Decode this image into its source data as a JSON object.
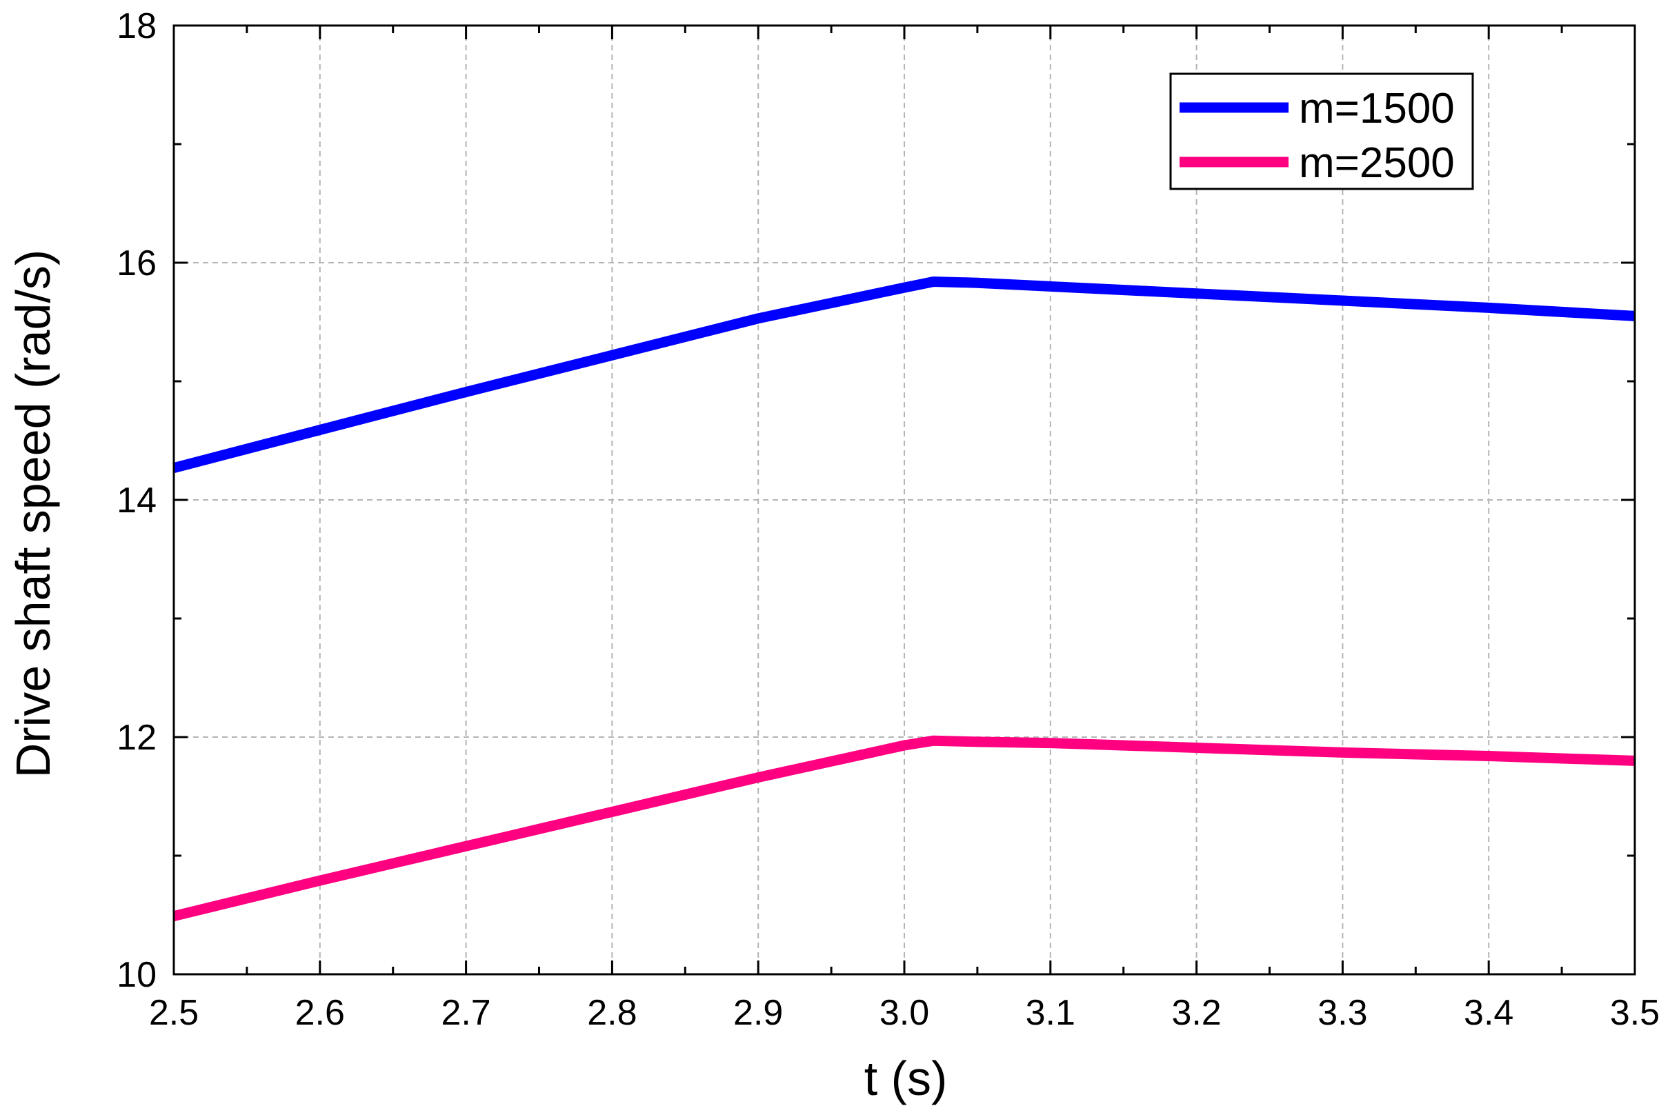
{
  "chart_data": {
    "type": "line",
    "title": "",
    "xlabel": "t (s)",
    "ylabel": "Drive shaft speed (rad/s)",
    "xlim": [
      2.5,
      3.5
    ],
    "ylim": [
      10,
      18
    ],
    "x_ticks": [
      "2.5",
      "2.6",
      "2.7",
      "2.8",
      "2.9",
      "3.0",
      "3.1",
      "3.2",
      "3.3",
      "3.4",
      "3.5"
    ],
    "y_ticks": [
      "10",
      "12",
      "14",
      "16",
      "18"
    ],
    "grid": true,
    "legend_position": "top-right",
    "series": [
      {
        "name": "m=1500",
        "color": "#0000ff",
        "x": [
          2.5,
          2.6,
          2.7,
          2.8,
          2.9,
          3.0,
          3.02,
          3.05,
          3.1,
          3.2,
          3.3,
          3.4,
          3.5
        ],
        "y": [
          14.27,
          14.59,
          14.91,
          15.22,
          15.53,
          15.79,
          15.84,
          15.83,
          15.8,
          15.74,
          15.68,
          15.62,
          15.55
        ]
      },
      {
        "name": "m=2500",
        "color": "#ff0080",
        "x": [
          2.5,
          2.6,
          2.7,
          2.8,
          2.9,
          3.0,
          3.02,
          3.05,
          3.1,
          3.2,
          3.3,
          3.4,
          3.5
        ],
        "y": [
          10.49,
          10.79,
          11.08,
          11.37,
          11.66,
          11.93,
          11.97,
          11.96,
          11.95,
          11.91,
          11.87,
          11.84,
          11.8
        ]
      }
    ]
  }
}
